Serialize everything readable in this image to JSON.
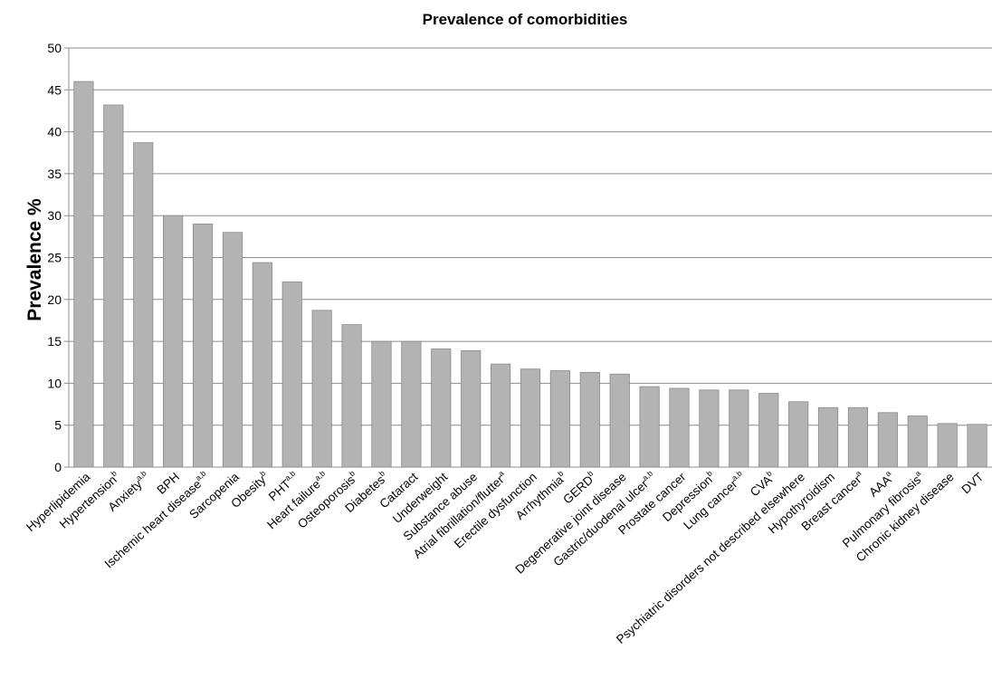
{
  "chart_data": {
    "type": "bar",
    "title": "Prevalence of comorbidities",
    "xlabel": "",
    "ylabel": "Prevalence %",
    "ylim": [
      0,
      50
    ],
    "yticks": [
      0,
      5,
      10,
      15,
      20,
      25,
      30,
      35,
      40,
      45,
      50
    ],
    "grid": true,
    "bar_color": "#b3b3b3",
    "categories": [
      {
        "label": "Hyperlipidemia",
        "sup": ""
      },
      {
        "label": "Hypertension",
        "sup": "b"
      },
      {
        "label": "Anxiety",
        "sup": "a,b"
      },
      {
        "label": "BPH",
        "sup": ""
      },
      {
        "label": "Ischemic heart disease",
        "sup": "a,b"
      },
      {
        "label": "Sarcopenia",
        "sup": ""
      },
      {
        "label": "Obesity",
        "sup": "b"
      },
      {
        "label": "PHT",
        "sup": "a,b"
      },
      {
        "label": "Heart failure",
        "sup": "a,b"
      },
      {
        "label": "Osteoporosis",
        "sup": "b"
      },
      {
        "label": "Diabetes",
        "sup": "b"
      },
      {
        "label": "Cataract",
        "sup": ""
      },
      {
        "label": "Underweight",
        "sup": ""
      },
      {
        "label": "Substance abuse",
        "sup": ""
      },
      {
        "label": "Atrial fibrillation/flutter",
        "sup": "a"
      },
      {
        "label": "Erectile dysfunction",
        "sup": ""
      },
      {
        "label": "Arrhythmia",
        "sup": "b"
      },
      {
        "label": "GERD",
        "sup": "b"
      },
      {
        "label": "Degenerative joint disease",
        "sup": ""
      },
      {
        "label": "Gastric/duodenal ulcer",
        "sup": "a,b"
      },
      {
        "label": "Prostate cancer",
        "sup": ""
      },
      {
        "label": "Depression",
        "sup": "b"
      },
      {
        "label": "Lung cancer",
        "sup": "a,b"
      },
      {
        "label": "CVA",
        "sup": "b"
      },
      {
        "label": "Psychiatric disorders not described elsewhere",
        "sup": ""
      },
      {
        "label": "Hypothyroidism",
        "sup": ""
      },
      {
        "label": "Breast cancer",
        "sup": "a"
      },
      {
        "label": "AAA",
        "sup": "a"
      },
      {
        "label": "Pulmonary fibrosis",
        "sup": "a"
      },
      {
        "label": "Chronic kidney disease",
        "sup": ""
      },
      {
        "label": "DVT",
        "sup": ""
      }
    ],
    "values": [
      46.0,
      43.2,
      38.7,
      30.0,
      29.0,
      28.0,
      24.4,
      22.1,
      18.7,
      17.0,
      15.0,
      15.0,
      14.1,
      13.9,
      12.3,
      11.7,
      11.5,
      11.3,
      11.1,
      9.6,
      9.4,
      9.2,
      9.2,
      8.8,
      7.8,
      7.1,
      7.1,
      6.5,
      6.1,
      5.2,
      5.1
    ]
  }
}
